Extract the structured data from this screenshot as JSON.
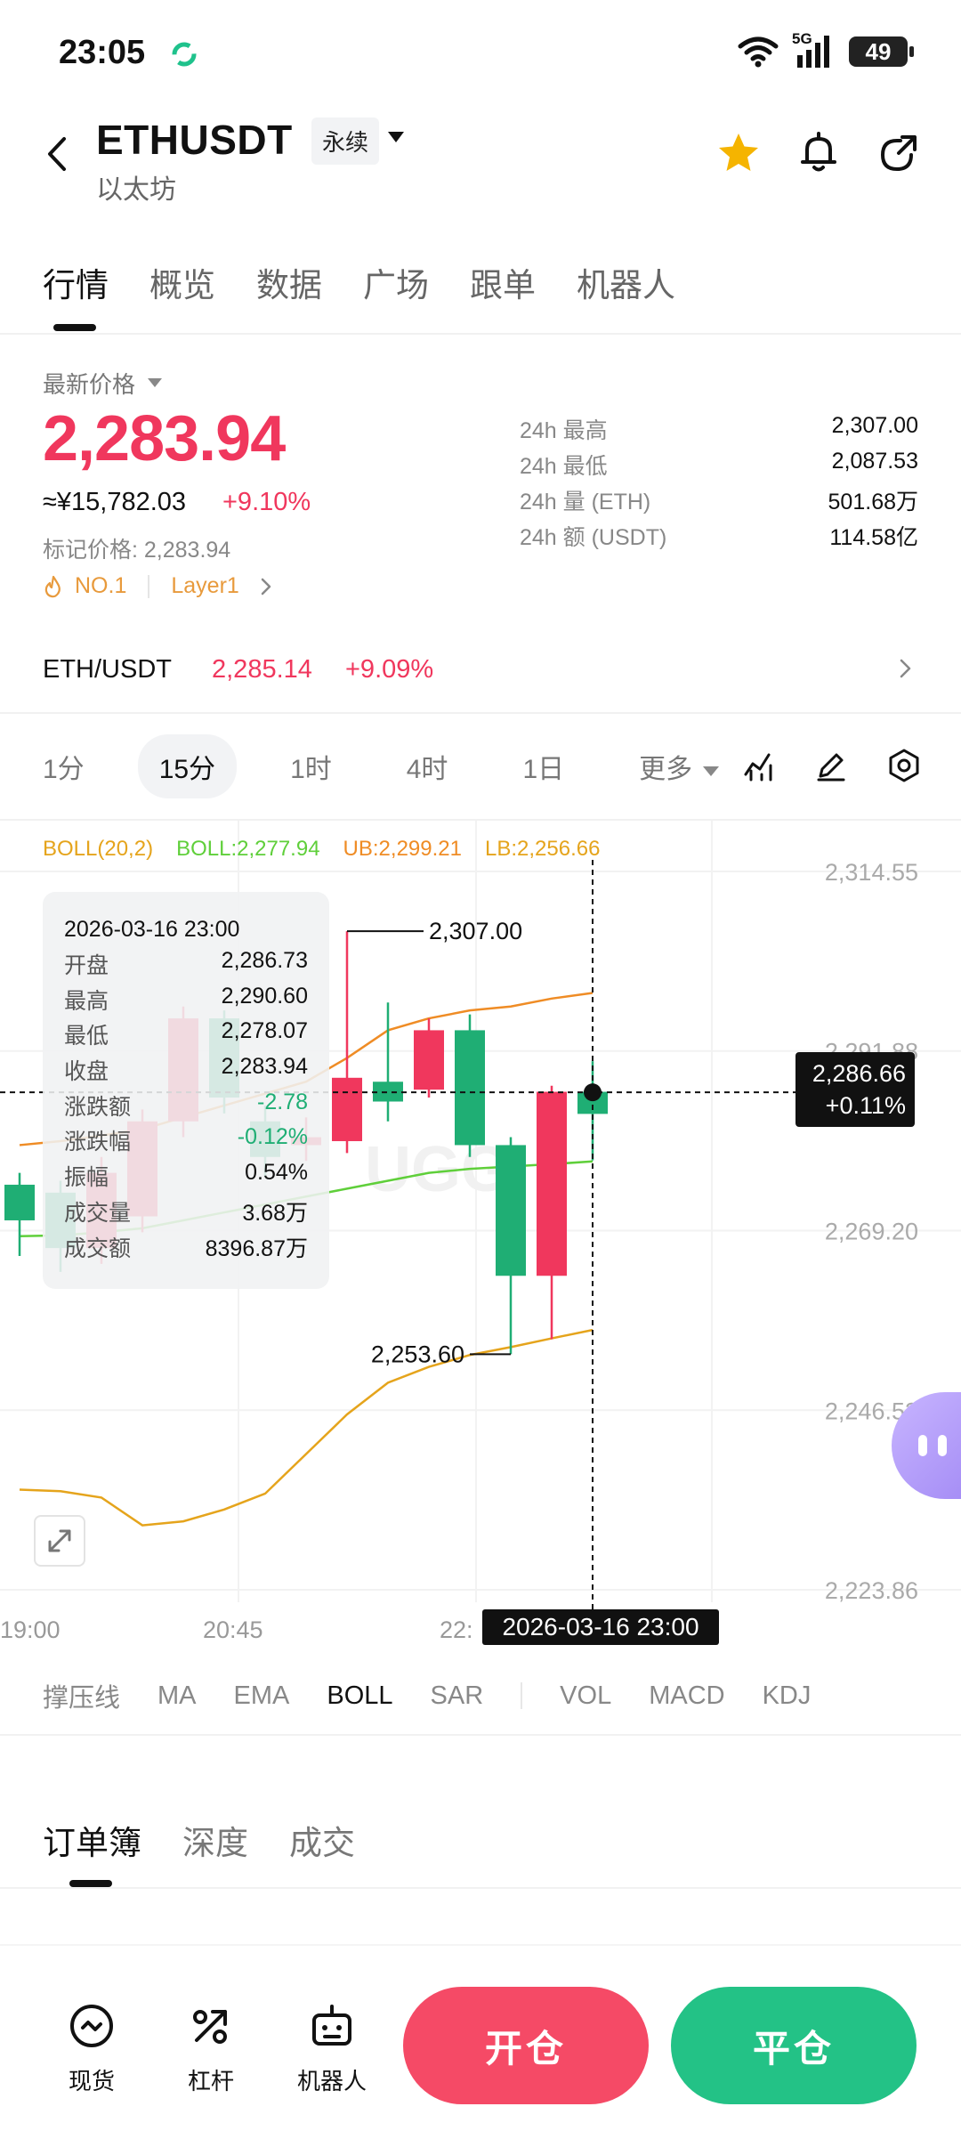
{
  "status_bar": {
    "time": "23:05",
    "network": "5G",
    "battery": "49",
    "icons": [
      "wifi-icon",
      "signal-icon",
      "battery-icon"
    ]
  },
  "header": {
    "symbol": "ETHUSDT",
    "contract_type": "永续",
    "name": "以太坊",
    "icons": [
      "back-icon",
      "star-icon",
      "bell-icon",
      "share-icon"
    ],
    "accent_star": "#f5b400"
  },
  "tabs": [
    {
      "label": "行情",
      "active": true
    },
    {
      "label": "概览",
      "active": false
    },
    {
      "label": "数据",
      "active": false
    },
    {
      "label": "广场",
      "active": false
    },
    {
      "label": "跟单",
      "active": false
    },
    {
      "label": "机器人",
      "active": false
    }
  ],
  "price": {
    "label": "最新价格",
    "last": "2,283.94",
    "cny": "≈¥15,782.03",
    "change_pct": "+9.10%",
    "mark_price": "标记价格: 2,283.94",
    "rank_tag": "NO.1",
    "category_tag": "Layer1",
    "up_color": "#f0375d",
    "down_color": "#1fae74"
  },
  "stats": [
    {
      "label": "24h  最高",
      "value": "2,307.00"
    },
    {
      "label": "24h  最低",
      "value": "2,087.53"
    },
    {
      "label": "24h  量 (ETH)",
      "value": "501.68万"
    },
    {
      "label": "24h  额 (USDT)",
      "value": "114.58亿"
    }
  ],
  "spot_pair": {
    "pair": "ETH/USDT",
    "price": "2,285.14",
    "change": "+9.09%"
  },
  "intervals": {
    "items": [
      "1分",
      "15分",
      "1时",
      "4时",
      "1日"
    ],
    "active_index": 1,
    "more": "更多",
    "tools": [
      "indicator-icon",
      "draw-icon",
      "settings-icon"
    ]
  },
  "chart": {
    "legend": {
      "name": "BOLL(20,2)",
      "mid": "BOLL:2,277.94",
      "ub": "UB:2,299.21",
      "lb": "LB:2,256.66"
    },
    "y_ticks": [
      "2,314.55",
      "2,291.88",
      "2,269.20",
      "2,246.53",
      "2,223.86"
    ],
    "x_ticks": [
      "19:00",
      "20:45",
      "22:"
    ],
    "high_marker": "2,307.00",
    "low_marker": "2,253.60",
    "crosshair_price": "2,286.66",
    "crosshair_pct": "+0.11%",
    "crosshair_time": "2026-03-16 23:00",
    "watermark": "UGG",
    "tooltip": {
      "date": "2026-03-16 23:00",
      "rows": [
        {
          "label": "开盘",
          "value": "2,286.73"
        },
        {
          "label": "最高",
          "value": "2,290.60"
        },
        {
          "label": "最低",
          "value": "2,278.07"
        },
        {
          "label": "收盘",
          "value": "2,283.94"
        },
        {
          "label": "涨跌额",
          "value": "-2.78"
        },
        {
          "label": "涨跌幅",
          "value": "-0.12%"
        },
        {
          "label": "振幅",
          "value": "0.54%"
        },
        {
          "label": "成交量",
          "value": "3.68万"
        },
        {
          "label": "成交额",
          "value": "8396.87万"
        }
      ]
    }
  },
  "chart_data": {
    "type": "candlestick",
    "y_range": [
      2223.86,
      2314.55
    ],
    "candles": [
      {
        "open": 2275.0,
        "close": 2270.5,
        "high": 2276.5,
        "low": 2266.0
      },
      {
        "open": 2274.0,
        "close": 2267.0,
        "high": 2275.5,
        "low": 2264.0
      },
      {
        "open": 2267.0,
        "close": 2276.5,
        "high": 2278.5,
        "low": 2265.0
      },
      {
        "open": 2271.0,
        "close": 2283.0,
        "high": 2284.5,
        "low": 2269.0
      },
      {
        "open": 2283.0,
        "close": 2296.0,
        "high": 2297.5,
        "low": 2281.0
      },
      {
        "open": 2296.0,
        "close": 2286.0,
        "high": 2297.0,
        "low": 2284.0
      },
      {
        "open": 2283.0,
        "close": 2278.5,
        "high": 2285.0,
        "low": 2276.0
      },
      {
        "open": 2280.0,
        "close": 2281.0,
        "high": 2283.5,
        "low": 2278.0
      },
      {
        "open": 2280.5,
        "close": 2288.5,
        "high": 2307.0,
        "low": 2279.0
      },
      {
        "open": 2288.0,
        "close": 2285.5,
        "high": 2298.0,
        "low": 2283.0
      },
      {
        "open": 2287.0,
        "close": 2294.5,
        "high": 2296.0,
        "low": 2286.0
      },
      {
        "open": 2294.5,
        "close": 2280.0,
        "high": 2296.5,
        "low": 2278.5
      },
      {
        "open": 2280.0,
        "close": 2263.5,
        "high": 2281.0,
        "low": 2253.6
      },
      {
        "open": 2263.5,
        "close": 2286.73,
        "high": 2287.5,
        "low": 2255.5
      },
      {
        "open": 2286.73,
        "close": 2283.94,
        "high": 2290.6,
        "low": 2278.07
      }
    ],
    "boll_ub": [
      2280.0,
      2280.5,
      2281.2,
      2282.0,
      2283.5,
      2285.0,
      2286.5,
      2288.0,
      2291.0,
      2294.5,
      2296.0,
      2297.0,
      2297.5,
      2298.5,
      2299.21
    ],
    "boll_mid": [
      2268.5,
      2268.6,
      2269.0,
      2269.5,
      2270.5,
      2271.5,
      2272.5,
      2273.5,
      2274.5,
      2275.5,
      2276.5,
      2277.0,
      2277.3,
      2277.6,
      2277.94
    ],
    "boll_lb": [
      2236.5,
      2236.3,
      2235.5,
      2232.0,
      2232.5,
      2234.0,
      2236.0,
      2241.0,
      2246.0,
      2250.0,
      2252.0,
      2253.5,
      2254.5,
      2255.6,
      2256.66
    ],
    "crosshair": {
      "price": 2286.66,
      "time": "2026-03-16 23:00"
    }
  },
  "indicators": {
    "main": [
      "撑压线",
      "MA",
      "EMA",
      "BOLL",
      "SAR"
    ],
    "sub": [
      "VOL",
      "MACD",
      "KDJ"
    ],
    "active": "BOLL"
  },
  "orderbook_tabs": [
    {
      "label": "订单簿",
      "active": true
    },
    {
      "label": "深度",
      "active": false
    },
    {
      "label": "成交",
      "active": false
    }
  ],
  "bottom_nav": {
    "items": [
      {
        "label": "现货",
        "icon": "spot-icon"
      },
      {
        "label": "杠杆",
        "icon": "leverage-icon"
      },
      {
        "label": "机器人",
        "icon": "robot-icon"
      }
    ],
    "open_label": "开仓",
    "close_label": "平仓",
    "open_color": "#f54a66",
    "close_color": "#23c286"
  }
}
